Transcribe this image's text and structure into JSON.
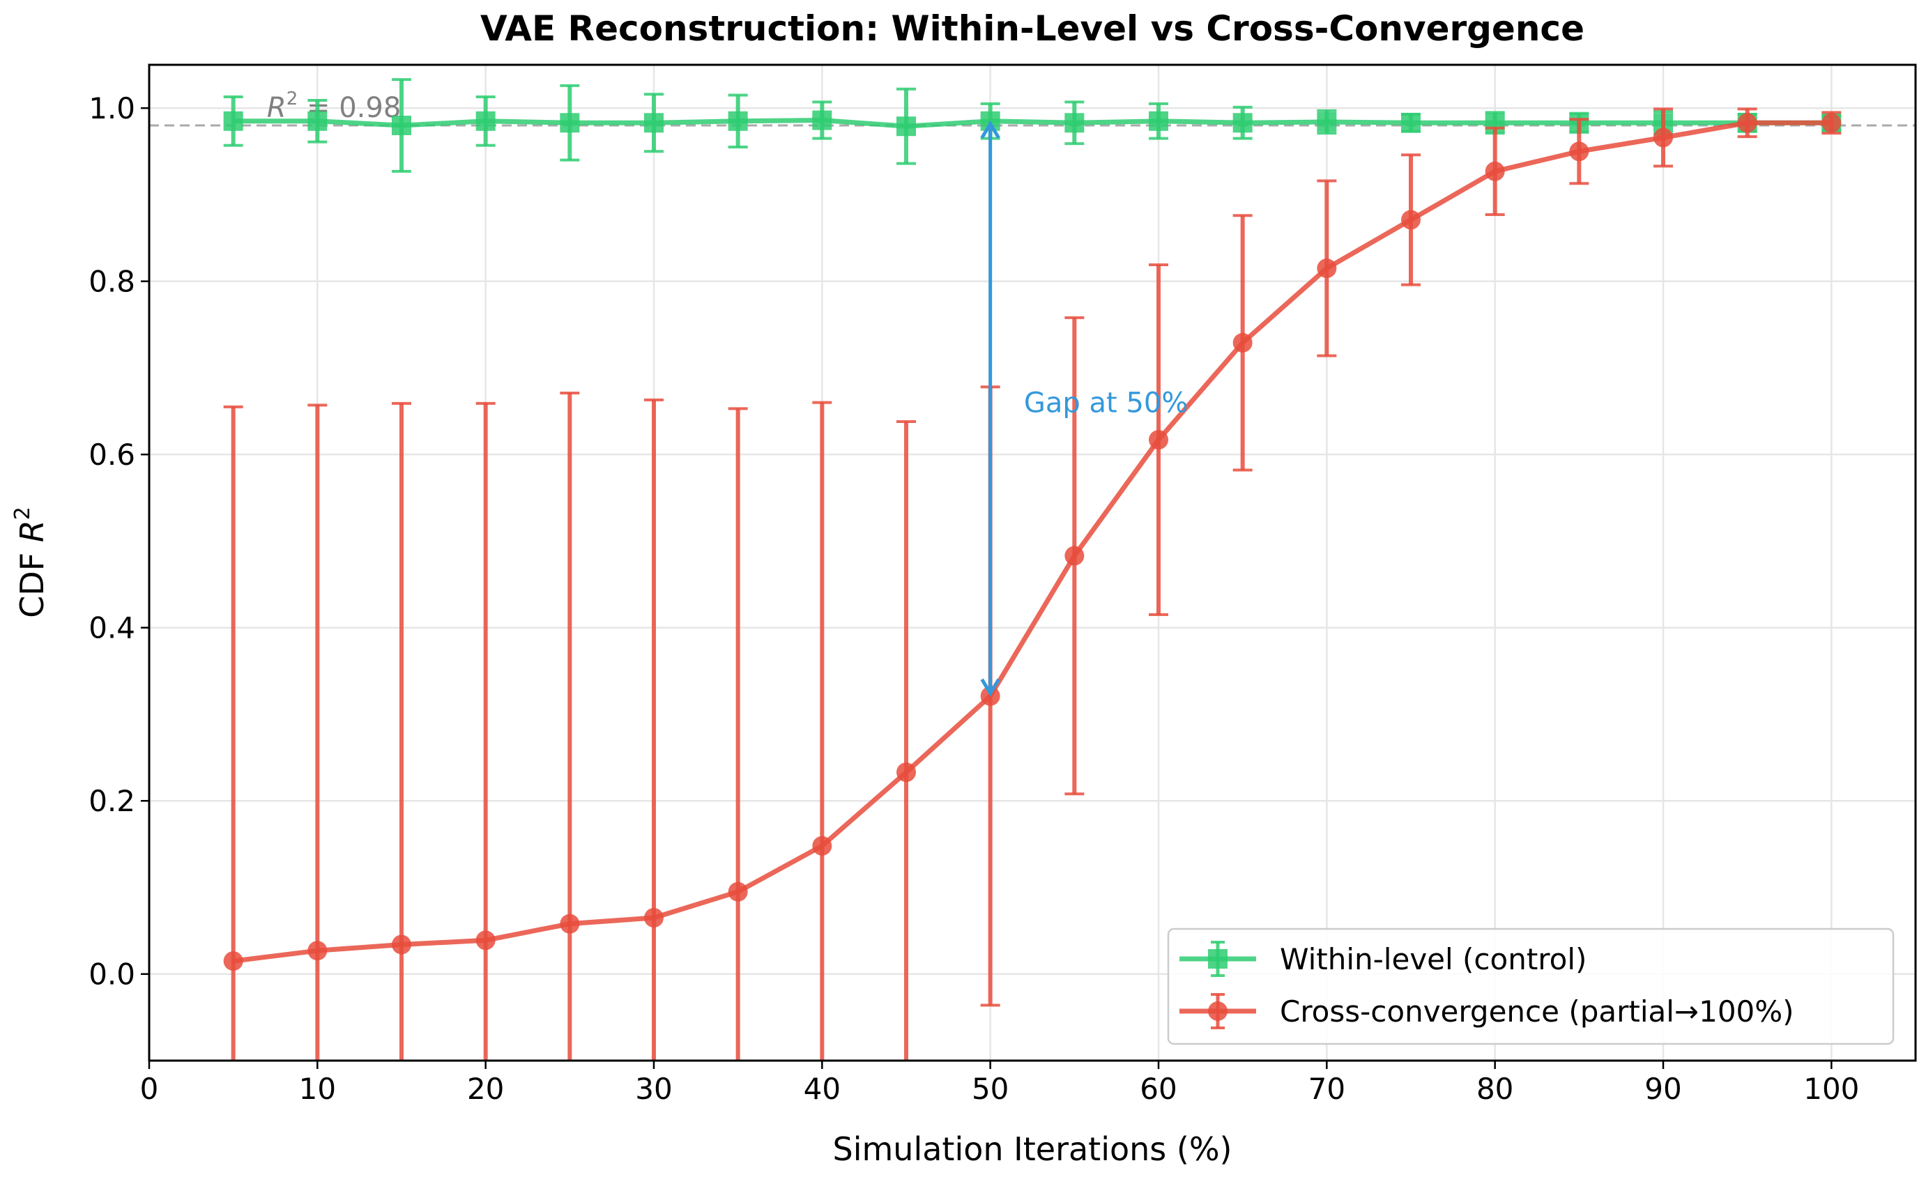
{
  "chart_data": {
    "type": "line",
    "title": "VAE Reconstruction: Within-Level vs Cross-Convergence",
    "xlabel": "Simulation Iterations (%)",
    "ylabel": "CDF R",
    "ylabel_sup": "2",
    "xlim": [
      0,
      105
    ],
    "ylim": [
      -0.1,
      1.05
    ],
    "xticks": [
      "0",
      "10",
      "20",
      "30",
      "40",
      "50",
      "60",
      "70",
      "80",
      "90",
      "100"
    ],
    "yticks": [
      "0.0",
      "0.2",
      "0.4",
      "0.6",
      "0.8",
      "1.0"
    ],
    "grid": true,
    "legend_position": "bottom-right",
    "x": [
      5,
      10,
      15,
      20,
      25,
      30,
      35,
      40,
      45,
      50,
      55,
      60,
      65,
      70,
      75,
      80,
      85,
      90,
      95,
      100
    ],
    "series": [
      {
        "name": "Within-level (control)",
        "color": "#2ecc71",
        "marker": "square",
        "values": [
          0.985,
          0.985,
          0.98,
          0.985,
          0.983,
          0.983,
          0.985,
          0.986,
          0.979,
          0.985,
          0.983,
          0.985,
          0.983,
          0.984,
          0.983,
          0.983,
          0.983,
          0.983,
          0.983,
          0.983
        ],
        "errors": [
          0.028,
          0.024,
          0.053,
          0.028,
          0.043,
          0.033,
          0.03,
          0.021,
          0.043,
          0.02,
          0.024,
          0.02,
          0.018,
          0.013,
          0.01,
          0.012,
          0.011,
          0.013,
          0.01,
          0.008
        ]
      },
      {
        "name": "Cross-convergence (partial→100%)",
        "color": "#e74c3c",
        "marker": "circle",
        "values": [
          0.015,
          0.027,
          0.034,
          0.039,
          0.058,
          0.065,
          0.095,
          0.148,
          0.233,
          0.321,
          0.483,
          0.617,
          0.729,
          0.815,
          0.871,
          0.927,
          0.95,
          0.966,
          0.983,
          0.983
        ],
        "errors": [
          0.64,
          0.63,
          0.625,
          0.62,
          0.613,
          0.598,
          0.558,
          0.512,
          0.405,
          0.357,
          0.275,
          0.202,
          0.147,
          0.101,
          0.075,
          0.05,
          0.037,
          0.033,
          0.016,
          0.012
        ]
      }
    ],
    "reference_line": {
      "y": 0.98,
      "label": "R",
      "label_sup": "2",
      "label_value": " = 0.98",
      "color": "#aaaaaa"
    },
    "annotation": {
      "text": "Gap at 50%",
      "x": 50,
      "y_from": 0.321,
      "y_to": 0.985,
      "text_x": 52,
      "text_y": 0.66,
      "color": "#3498db"
    }
  }
}
